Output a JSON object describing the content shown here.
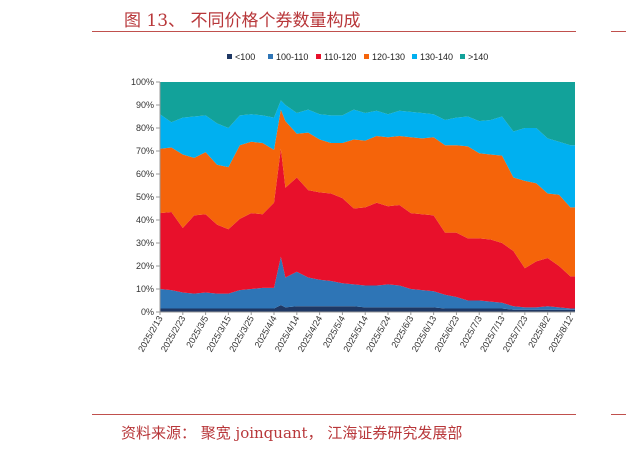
{
  "header": {
    "title": "图 13、 不同价格个券数量构成"
  },
  "footer": {
    "source": "资料来源： 聚宽 joinquant， 江海证券研究发展部"
  },
  "chart_data": {
    "type": "area",
    "stacked": true,
    "percent": true,
    "title": "",
    "xlabel": "",
    "ylabel": "",
    "ylim": [
      0,
      100
    ],
    "yticks": [
      "0%",
      "10%",
      "20%",
      "30%",
      "40%",
      "50%",
      "60%",
      "70%",
      "80%",
      "90%",
      "100%"
    ],
    "x_tick_labels": [
      "2025/2/13",
      "2025/2/23",
      "2025/3/5",
      "2025/3/15",
      "2025/3/25",
      "2025/4/4",
      "2025/4/14",
      "2025/4/24",
      "2025/5/4",
      "2025/5/14",
      "2025/5/24",
      "2025/6/3",
      "2025/6/13",
      "2025/6/23",
      "2025/7/3",
      "2025/7/13",
      "2025/7/23",
      "2025/8/2",
      "2025/8/12"
    ],
    "legend_position": "top",
    "x": [
      "2025/2/13",
      "2025/2/18",
      "2025/2/23",
      "2025/2/28",
      "2025/3/5",
      "2025/3/10",
      "2025/3/15",
      "2025/3/20",
      "2025/3/25",
      "2025/3/30",
      "2025/4/4",
      "2025/4/7",
      "2025/4/9",
      "2025/4/14",
      "2025/4/19",
      "2025/4/24",
      "2025/4/29",
      "2025/5/4",
      "2025/5/9",
      "2025/5/14",
      "2025/5/19",
      "2025/5/24",
      "2025/5/29",
      "2025/6/3",
      "2025/6/8",
      "2025/6/13",
      "2025/6/18",
      "2025/6/23",
      "2025/6/28",
      "2025/7/3",
      "2025/7/8",
      "2025/7/13",
      "2025/7/18",
      "2025/7/23",
      "2025/7/28",
      "2025/8/2",
      "2025/8/7",
      "2025/8/12",
      "2025/8/14"
    ],
    "series": [
      {
        "name": "<100",
        "color": "#1f3864",
        "values": [
          1.5,
          1.5,
          1.5,
          1.5,
          1.5,
          1.5,
          1.5,
          1.5,
          1.5,
          1.5,
          1.5,
          3,
          2,
          2.5,
          2.5,
          2.5,
          2.5,
          2.5,
          2.5,
          2,
          2,
          2,
          2,
          2,
          2,
          2,
          1.5,
          1.5,
          1.5,
          1.5,
          1.5,
          1.5,
          1,
          1,
          1,
          1,
          1,
          1,
          1
        ]
      },
      {
        "name": "100-110",
        "color": "#2e75b6",
        "values": [
          8.5,
          8,
          7,
          6.5,
          7,
          6.5,
          6.5,
          8,
          8.5,
          9,
          9,
          21,
          13,
          15,
          12.5,
          11.5,
          11,
          10,
          9.5,
          9.5,
          9.5,
          10,
          9.5,
          8,
          7.5,
          7,
          6,
          5,
          3.5,
          3.5,
          3,
          2.5,
          1.5,
          1,
          1,
          1.5,
          1,
          0.5,
          0.5
        ]
      },
      {
        "name": "110-120",
        "color": "#e8102b",
        "values": [
          33,
          34,
          28,
          34,
          34,
          30,
          28,
          31,
          33,
          32,
          37,
          47,
          39,
          41,
          38,
          38,
          38,
          37,
          33,
          34,
          36,
          34,
          35,
          33,
          33,
          33,
          27,
          28,
          27,
          27,
          27,
          26,
          24,
          17,
          20,
          21,
          18,
          14,
          14
        ]
      },
      {
        "name": "120-130",
        "color": "#f5640a",
        "values": [
          28,
          28,
          32,
          25,
          27,
          26,
          27,
          32,
          31,
          31,
          23,
          17,
          29,
          19,
          25,
          23,
          22,
          24,
          30,
          29,
          29,
          30,
          30,
          33,
          33,
          34,
          38,
          38,
          40,
          37,
          37,
          38,
          32,
          38,
          34,
          28,
          31,
          30,
          30
        ]
      },
      {
        "name": "130-140",
        "color": "#00b0f0",
        "values": [
          15,
          11,
          16,
          18,
          16,
          18,
          17,
          13,
          12,
          12,
          14,
          4,
          7,
          9,
          10,
          11,
          12,
          12,
          13,
          12,
          11,
          10,
          11,
          11,
          11,
          10,
          11,
          12,
          13,
          14,
          15,
          17,
          20,
          23,
          24,
          24,
          23,
          27,
          27
        ]
      },
      {
        "name": ">140",
        "color": "#12a29a",
        "values": [
          14,
          17.5,
          15.5,
          15,
          14.5,
          18,
          20,
          14.5,
          14,
          14.5,
          15.5,
          8,
          10,
          13.5,
          12,
          14,
          14.5,
          14.5,
          12,
          13.5,
          12.5,
          14,
          12.5,
          13,
          13.5,
          14,
          16.5,
          15.5,
          15,
          17,
          16.5,
          15,
          21.5,
          20,
          20,
          24.5,
          26,
          27.5,
          27.5
        ]
      }
    ]
  }
}
